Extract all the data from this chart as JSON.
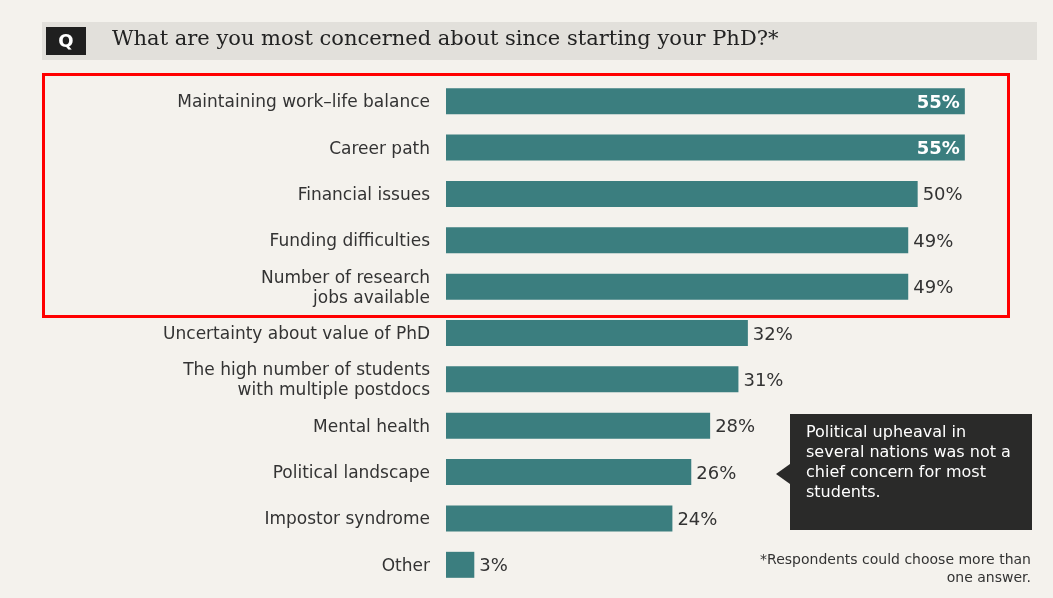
{
  "chart_data": {
    "type": "bar",
    "orientation": "horizontal",
    "title": "What are you most concerned about since starting your PhD?*",
    "categories": [
      "Maintaining work–life balance",
      "Career path",
      "Financial issues",
      "Funding difficulties",
      "Number of research\njobs available",
      "Uncertainty about value of PhD",
      "The high number of students\nwith multiple postdocs",
      "Mental health",
      "Political landscape",
      "Impostor syndrome",
      "Other"
    ],
    "values": [
      55,
      55,
      50,
      49,
      49,
      32,
      31,
      28,
      26,
      24,
      3
    ],
    "value_labels": [
      "55%",
      "55%",
      "50%",
      "49%",
      "49%",
      "32%",
      "31%",
      "28%",
      "26%",
      "24%",
      "3%"
    ],
    "color": "#3b7e7f",
    "annotations": [
      "Q",
      "Political upheaval in several nations was not a chief concern for most students.",
      "*Respondents could choose more than one answer."
    ]
  }
}
